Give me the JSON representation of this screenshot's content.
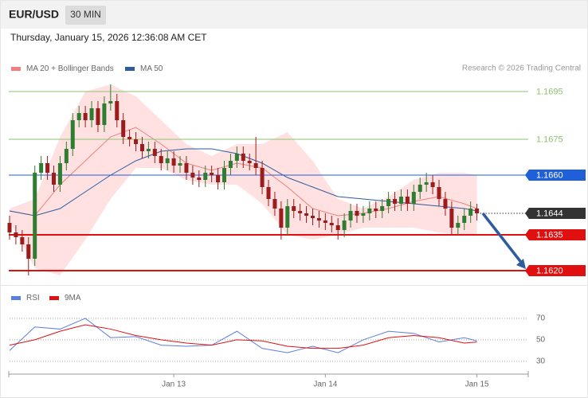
{
  "header": {
    "symbol": "EUR/USD",
    "timeframe": "30 MIN",
    "datetime": "Thursday, January 15, 2026 12:36:08 AM CET"
  },
  "chart_data": [
    {
      "type": "candlestick",
      "annotation": "Research © 2026 Trading Central",
      "xlim": [
        0,
        82
      ],
      "ylim": [
        1.1615,
        1.171
      ],
      "up_color": "#2f7d32",
      "down_color": "#9b1c1c",
      "band_color": "#ffe1e1",
      "x": [
        0,
        1,
        2,
        3,
        4,
        5,
        6,
        7,
        8,
        9,
        10,
        11,
        12,
        13,
        14,
        15,
        16,
        17,
        18,
        19,
        20,
        21,
        22,
        23,
        24,
        25,
        26,
        27,
        28,
        29,
        30,
        31,
        32,
        33,
        34,
        35,
        36,
        37,
        38,
        39,
        40,
        41,
        42,
        43,
        44,
        45,
        46,
        47,
        48,
        49,
        50,
        51,
        52,
        53,
        54,
        55,
        56,
        57,
        58,
        59,
        60,
        61,
        62,
        63,
        64,
        65,
        66,
        67,
        68,
        69,
        70,
        71,
        72,
        73,
        74
      ],
      "open": [
        1.164,
        1.1636,
        1.1634,
        1.1631,
        1.1625,
        1.1661,
        1.1665,
        1.1661,
        1.1656,
        1.1665,
        1.1671,
        1.1683,
        1.1686,
        1.1683,
        1.1688,
        1.1681,
        1.169,
        1.1691,
        1.1683,
        1.1676,
        1.1675,
        1.1673,
        1.167,
        1.1671,
        1.1668,
        1.1665,
        1.1667,
        1.1664,
        1.1665,
        1.1661,
        1.1659,
        1.1658,
        1.1661,
        1.166,
        1.1657,
        1.1663,
        1.1666,
        1.1669,
        1.1666,
        1.1665,
        1.1663,
        1.1655,
        1.165,
        1.1646,
        1.1638,
        1.1647,
        1.1645,
        1.1644,
        1.1643,
        1.1642,
        1.1641,
        1.164,
        1.1639,
        1.1637,
        1.1641,
        1.1645,
        1.1643,
        1.1644,
        1.1646,
        1.1645,
        1.1647,
        1.165,
        1.1648,
        1.1651,
        1.1648,
        1.1653,
        1.1656,
        1.1657,
        1.1655,
        1.165,
        1.1646,
        1.1638,
        1.164,
        1.1643,
        1.1646
      ],
      "high": [
        1.1643,
        1.1639,
        1.1637,
        1.1634,
        1.1664,
        1.1668,
        1.1668,
        1.1664,
        1.1668,
        1.1674,
        1.1686,
        1.1689,
        1.1689,
        1.1691,
        1.1691,
        1.1693,
        1.1698,
        1.1694,
        1.1686,
        1.1679,
        1.1678,
        1.1676,
        1.1674,
        1.1674,
        1.1671,
        1.167,
        1.167,
        1.1668,
        1.1668,
        1.1664,
        1.1662,
        1.1664,
        1.1664,
        1.1663,
        1.1666,
        1.1669,
        1.1672,
        1.1672,
        1.1669,
        1.1676,
        1.1666,
        1.1658,
        1.1653,
        1.1649,
        1.165,
        1.165,
        1.1648,
        1.1647,
        1.1646,
        1.1645,
        1.1644,
        1.1643,
        1.1642,
        1.1644,
        1.1648,
        1.1648,
        1.1647,
        1.1649,
        1.1649,
        1.165,
        1.1653,
        1.1653,
        1.1654,
        1.1654,
        1.1656,
        1.1659,
        1.1661,
        1.166,
        1.1658,
        1.1653,
        1.1649,
        1.1643,
        1.1646,
        1.1649,
        1.1648
      ],
      "low": [
        1.1633,
        1.1631,
        1.1628,
        1.1618,
        1.1622,
        1.1658,
        1.1658,
        1.1653,
        1.1653,
        1.1662,
        1.1668,
        1.168,
        1.168,
        1.168,
        1.1678,
        1.1678,
        1.1687,
        1.168,
        1.1673,
        1.1672,
        1.167,
        1.1667,
        1.1667,
        1.1665,
        1.1662,
        1.1662,
        1.1661,
        1.1661,
        1.1658,
        1.1656,
        1.1655,
        1.1655,
        1.1657,
        1.1654,
        1.1654,
        1.166,
        1.1663,
        1.1663,
        1.1662,
        1.166,
        1.1652,
        1.1647,
        1.1643,
        1.1633,
        1.1635,
        1.1642,
        1.1641,
        1.164,
        1.1639,
        1.1638,
        1.1637,
        1.1636,
        1.1633,
        1.1634,
        1.1638,
        1.164,
        1.164,
        1.1641,
        1.1642,
        1.1642,
        1.1644,
        1.1645,
        1.1645,
        1.1645,
        1.1645,
        1.165,
        1.1653,
        1.1652,
        1.1647,
        1.1643,
        1.1635,
        1.1635,
        1.1637,
        1.164,
        1.1641
      ],
      "close": [
        1.1636,
        1.1634,
        1.1631,
        1.1625,
        1.1661,
        1.1665,
        1.1661,
        1.1656,
        1.1665,
        1.1671,
        1.1683,
        1.1686,
        1.1683,
        1.1688,
        1.1681,
        1.169,
        1.1691,
        1.1683,
        1.1676,
        1.1675,
        1.1673,
        1.167,
        1.1671,
        1.1668,
        1.1665,
        1.1667,
        1.1664,
        1.1665,
        1.1661,
        1.1659,
        1.1658,
        1.1661,
        1.166,
        1.1657,
        1.1663,
        1.1666,
        1.1669,
        1.1666,
        1.1665,
        1.1663,
        1.1655,
        1.165,
        1.1646,
        1.1638,
        1.1647,
        1.1645,
        1.1644,
        1.1643,
        1.1642,
        1.1641,
        1.164,
        1.1639,
        1.1637,
        1.1641,
        1.1645,
        1.1643,
        1.1644,
        1.1646,
        1.1645,
        1.1647,
        1.165,
        1.1648,
        1.1651,
        1.1648,
        1.1653,
        1.1656,
        1.1657,
        1.1655,
        1.165,
        1.1646,
        1.1638,
        1.164,
        1.1643,
        1.1646,
        1.1644
      ],
      "series": [
        {
          "name": "MA 20 + Bollinger Bands",
          "color": "#f08080",
          "x": [
            0,
            4,
            8,
            12,
            16,
            20,
            24,
            28,
            32,
            36,
            40,
            44,
            48,
            52,
            56,
            60,
            64,
            68,
            72,
            74
          ],
          "values": [
            1.1645,
            1.1643,
            1.1656,
            1.1666,
            1.1676,
            1.168,
            1.1673,
            1.1665,
            1.1662,
            1.1665,
            1.1663,
            1.1655,
            1.1646,
            1.1643,
            1.1644,
            1.1646,
            1.1649,
            1.1651,
            1.1648,
            1.1646
          ],
          "upper": [
            1.1646,
            1.165,
            1.1676,
            1.1695,
            1.1698,
            1.1693,
            1.1683,
            1.1673,
            1.1668,
            1.1673,
            1.1673,
            1.1678,
            1.1666,
            1.165,
            1.1646,
            1.1651,
            1.1658,
            1.1661,
            1.1661,
            1.166
          ],
          "lower": [
            1.1641,
            1.1621,
            1.1618,
            1.1633,
            1.165,
            1.1663,
            1.1663,
            1.1658,
            1.1656,
            1.1656,
            1.1648,
            1.1635,
            1.1633,
            1.1635,
            1.1638,
            1.1638,
            1.1638,
            1.1636,
            1.1635,
            1.1635
          ]
        },
        {
          "name": "MA 50",
          "color": "#2e5c9e",
          "x": [
            0,
            4,
            8,
            12,
            16,
            20,
            24,
            28,
            32,
            36,
            40,
            44,
            48,
            52,
            56,
            60,
            64,
            68,
            72,
            74
          ],
          "values": [
            1.1645,
            1.1643,
            1.1646,
            1.1653,
            1.166,
            1.1666,
            1.167,
            1.1671,
            1.1671,
            1.1669,
            1.1665,
            1.1659,
            1.1655,
            1.1651,
            1.165,
            1.1649,
            1.1648,
            1.1647,
            1.1646,
            1.1645
          ]
        }
      ],
      "levels": [
        {
          "value": 1.1695,
          "label": "1.1695",
          "color": "#8dc26f",
          "style": "thin",
          "box": false
        },
        {
          "value": 1.1675,
          "label": "1.1675",
          "color": "#8dc26f",
          "style": "thin",
          "box": false
        },
        {
          "value": 1.166,
          "label": "1.1660",
          "color": "#1f5fd8",
          "style": "thin",
          "box": true
        },
        {
          "value": 1.1644,
          "label": "1.1644",
          "color": "#333333",
          "style": "dotted",
          "box": true
        },
        {
          "value": 1.1635,
          "label": "1.1635",
          "color": "#e01010",
          "style": "bold",
          "box": true
        },
        {
          "value": 1.162,
          "label": "1.1620",
          "color": "#e01010",
          "style": "bold",
          "box": true
        }
      ]
    },
    {
      "type": "line",
      "xlim": [
        0,
        82
      ],
      "ylim": [
        18,
        80
      ],
      "yticks": [
        30,
        50,
        70
      ],
      "xticks": [
        {
          "value": 26,
          "label": "Jan 13"
        },
        {
          "value": 50,
          "label": "Jan 14"
        },
        {
          "value": 74,
          "label": "Jan 15"
        }
      ],
      "grid": true,
      "series": [
        {
          "name": "RSI",
          "color": "#5b7fde",
          "x": [
            0,
            4,
            8,
            12,
            16,
            20,
            24,
            28,
            32,
            36,
            40,
            44,
            48,
            52,
            56,
            60,
            64,
            68,
            72,
            74
          ],
          "values": [
            40,
            62,
            60,
            70,
            52,
            53,
            45,
            44,
            45,
            58,
            42,
            38,
            44,
            38,
            50,
            58,
            56,
            48,
            52,
            49
          ]
        },
        {
          "name": "9MA",
          "color": "#e01010",
          "x": [
            0,
            4,
            8,
            12,
            16,
            20,
            24,
            28,
            32,
            36,
            40,
            44,
            48,
            52,
            56,
            60,
            64,
            68,
            72,
            74
          ],
          "values": [
            45,
            50,
            58,
            64,
            60,
            54,
            50,
            47,
            45,
            50,
            49,
            44,
            42,
            42,
            45,
            52,
            54,
            52,
            47,
            48
          ]
        }
      ]
    }
  ]
}
